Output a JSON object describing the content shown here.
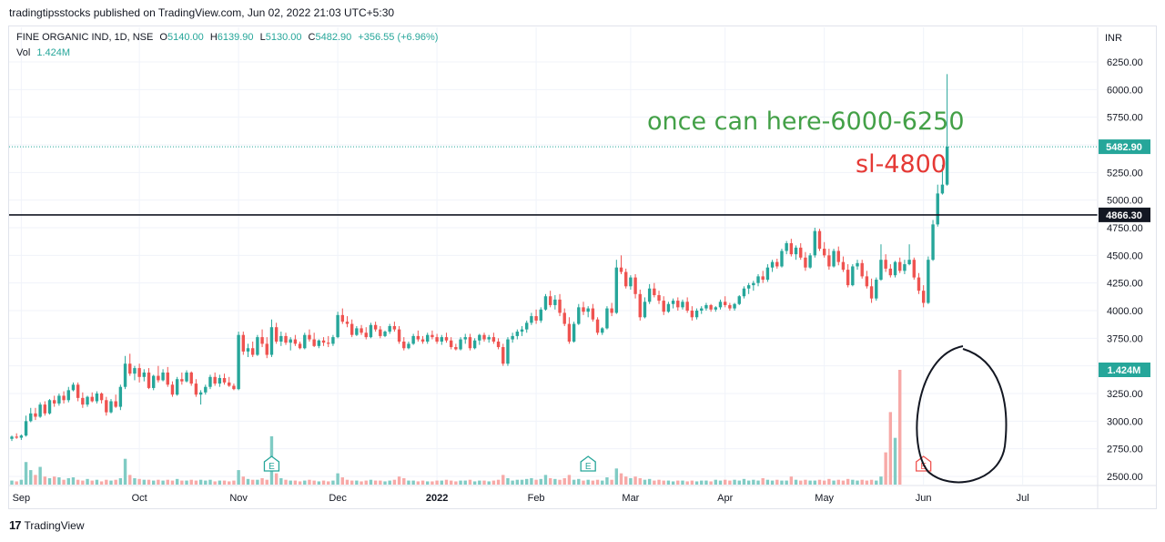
{
  "header": {
    "publisher_line": "tradingtipsstocks published on TradingView.com, Jun 02, 2022 21:03 UTC+5:30"
  },
  "legend": {
    "symbol": "FINE ORGANIC IND, 1D, NSE",
    "o_label": "O",
    "o_value": "5140.00",
    "h_label": "H",
    "h_value": "6139.90",
    "l_label": "L",
    "l_value": "5130.00",
    "c_label": "C",
    "c_value": "5482.90",
    "change": "+356.55 (+6.96%)",
    "vol_label": "Vol",
    "vol_value": "1.424M"
  },
  "annotations": {
    "target_text": "once can here-6000-6250",
    "sl_text": "sl-4800"
  },
  "footer": {
    "logo": "17",
    "brand": "TradingView"
  },
  "colors": {
    "up": "#26a69a",
    "down": "#ef5350",
    "up_vol": "#80cbc4",
    "down_vol": "#f7a9a7",
    "target_text": "#43a047",
    "sl_text": "#e53935",
    "level_line": "#131722"
  },
  "chart_data": {
    "type": "candlestick",
    "currency": "INR",
    "y_ticks": [
      "6250.00",
      "6000.00",
      "5750.00",
      "5500.00",
      "5250.00",
      "5000.00",
      "4750.00",
      "4500.00",
      "4250.00",
      "4000.00",
      "3750.00",
      "3500.00",
      "3250.00",
      "3000.00",
      "2750.00",
      "2500.00"
    ],
    "ylim": [
      2450,
      6450
    ],
    "x_labels": [
      "Sep",
      "Oct",
      "Nov",
      "Dec",
      "2022",
      "Feb",
      "Mar",
      "Apr",
      "May",
      "Jun",
      "Jul"
    ],
    "x_label_bar_index": [
      2,
      27,
      48,
      69,
      90,
      111,
      131,
      151,
      172,
      193,
      214
    ],
    "price_labels": {
      "last": "5482.90",
      "level": "4866.30",
      "volume": "1.424M"
    },
    "last_price": 5482.9,
    "horizontal_level": 4866.3,
    "events": [
      {
        "type": "E",
        "bar": 55
      },
      {
        "type": "E",
        "bar": 122
      },
      {
        "type": "E",
        "bar": 193,
        "highlight": true
      }
    ],
    "ohlc": [
      [
        2840,
        2870,
        2820,
        2860
      ],
      [
        2860,
        2890,
        2840,
        2850
      ],
      [
        2850,
        2880,
        2830,
        2870
      ],
      [
        2870,
        3050,
        2860,
        3000
      ],
      [
        3000,
        3120,
        2990,
        3070
      ],
      [
        3070,
        3120,
        3010,
        3040
      ],
      [
        3040,
        3170,
        3030,
        3150
      ],
      [
        3150,
        3180,
        3050,
        3070
      ],
      [
        3070,
        3200,
        3060,
        3190
      ],
      [
        3190,
        3230,
        3130,
        3160
      ],
      [
        3160,
        3250,
        3140,
        3230
      ],
      [
        3230,
        3270,
        3160,
        3190
      ],
      [
        3190,
        3310,
        3170,
        3280
      ],
      [
        3280,
        3350,
        3270,
        3330
      ],
      [
        3330,
        3350,
        3180,
        3210
      ],
      [
        3210,
        3260,
        3120,
        3150
      ],
      [
        3150,
        3230,
        3130,
        3220
      ],
      [
        3220,
        3260,
        3170,
        3180
      ],
      [
        3180,
        3270,
        3160,
        3250
      ],
      [
        3250,
        3260,
        3160,
        3190
      ],
      [
        3190,
        3220,
        3050,
        3080
      ],
      [
        3080,
        3200,
        3070,
        3180
      ],
      [
        3180,
        3240,
        3120,
        3130
      ],
      [
        3130,
        3330,
        3100,
        3310
      ],
      [
        3310,
        3590,
        3290,
        3520
      ],
      [
        3520,
        3610,
        3410,
        3430
      ],
      [
        3430,
        3500,
        3370,
        3480
      ],
      [
        3480,
        3520,
        3350,
        3400
      ],
      [
        3400,
        3470,
        3360,
        3440
      ],
      [
        3440,
        3480,
        3290,
        3300
      ],
      [
        3300,
        3420,
        3280,
        3410
      ],
      [
        3410,
        3500,
        3350,
        3370
      ],
      [
        3370,
        3470,
        3360,
        3440
      ],
      [
        3440,
        3490,
        3310,
        3330
      ],
      [
        3330,
        3360,
        3220,
        3240
      ],
      [
        3240,
        3400,
        3230,
        3380
      ],
      [
        3380,
        3440,
        3330,
        3360
      ],
      [
        3360,
        3460,
        3350,
        3440
      ],
      [
        3440,
        3450,
        3320,
        3340
      ],
      [
        3340,
        3380,
        3220,
        3240
      ],
      [
        3240,
        3280,
        3150,
        3260
      ],
      [
        3260,
        3330,
        3240,
        3310
      ],
      [
        3310,
        3420,
        3290,
        3400
      ],
      [
        3400,
        3440,
        3320,
        3340
      ],
      [
        3340,
        3420,
        3310,
        3390
      ],
      [
        3390,
        3430,
        3330,
        3350
      ],
      [
        3350,
        3400,
        3310,
        3320
      ],
      [
        3320,
        3340,
        3280,
        3290
      ],
      [
        3290,
        3810,
        3280,
        3780
      ],
      [
        3780,
        3810,
        3600,
        3630
      ],
      [
        3630,
        3700,
        3580,
        3660
      ],
      [
        3660,
        3720,
        3580,
        3600
      ],
      [
        3600,
        3780,
        3590,
        3760
      ],
      [
        3760,
        3830,
        3670,
        3700
      ],
      [
        3700,
        3760,
        3570,
        3600
      ],
      [
        3600,
        3920,
        3580,
        3850
      ],
      [
        3850,
        3890,
        3700,
        3720
      ],
      [
        3720,
        3810,
        3680,
        3770
      ],
      [
        3770,
        3800,
        3690,
        3710
      ],
      [
        3710,
        3760,
        3640,
        3740
      ],
      [
        3740,
        3780,
        3680,
        3700
      ],
      [
        3700,
        3720,
        3650,
        3660
      ],
      [
        3660,
        3800,
        3650,
        3780
      ],
      [
        3780,
        3830,
        3720,
        3740
      ],
      [
        3740,
        3800,
        3670,
        3680
      ],
      [
        3680,
        3740,
        3660,
        3730
      ],
      [
        3730,
        3760,
        3680,
        3710
      ],
      [
        3710,
        3770,
        3670,
        3700
      ],
      [
        3700,
        3780,
        3680,
        3760
      ],
      [
        3760,
        3990,
        3750,
        3960
      ],
      [
        3960,
        4020,
        3880,
        3900
      ],
      [
        3900,
        3950,
        3850,
        3880
      ],
      [
        3880,
        3920,
        3760,
        3780
      ],
      [
        3780,
        3860,
        3770,
        3840
      ],
      [
        3840,
        3870,
        3780,
        3800
      ],
      [
        3800,
        3850,
        3740,
        3760
      ],
      [
        3760,
        3890,
        3750,
        3870
      ],
      [
        3870,
        3900,
        3810,
        3830
      ],
      [
        3830,
        3860,
        3750,
        3770
      ],
      [
        3770,
        3820,
        3760,
        3810
      ],
      [
        3810,
        3880,
        3790,
        3860
      ],
      [
        3860,
        3900,
        3810,
        3830
      ],
      [
        3830,
        3860,
        3700,
        3720
      ],
      [
        3720,
        3760,
        3640,
        3660
      ],
      [
        3660,
        3720,
        3650,
        3700
      ],
      [
        3700,
        3790,
        3690,
        3770
      ],
      [
        3770,
        3820,
        3720,
        3740
      ],
      [
        3740,
        3770,
        3700,
        3720
      ],
      [
        3720,
        3800,
        3700,
        3780
      ],
      [
        3780,
        3820,
        3740,
        3760
      ],
      [
        3760,
        3790,
        3700,
        3720
      ],
      [
        3720,
        3780,
        3690,
        3760
      ],
      [
        3760,
        3800,
        3710,
        3730
      ],
      [
        3730,
        3760,
        3650,
        3670
      ],
      [
        3670,
        3700,
        3640,
        3650
      ],
      [
        3650,
        3760,
        3640,
        3740
      ],
      [
        3740,
        3790,
        3700,
        3760
      ],
      [
        3760,
        3790,
        3640,
        3660
      ],
      [
        3660,
        3750,
        3650,
        3730
      ],
      [
        3730,
        3790,
        3690,
        3780
      ],
      [
        3780,
        3800,
        3720,
        3740
      ],
      [
        3740,
        3780,
        3710,
        3760
      ],
      [
        3760,
        3800,
        3700,
        3720
      ],
      [
        3720,
        3750,
        3650,
        3670
      ],
      [
        3670,
        3700,
        3500,
        3520
      ],
      [
        3520,
        3760,
        3500,
        3740
      ],
      [
        3740,
        3800,
        3710,
        3770
      ],
      [
        3770,
        3830,
        3740,
        3810
      ],
      [
        3810,
        3860,
        3770,
        3830
      ],
      [
        3830,
        3910,
        3800,
        3890
      ],
      [
        3890,
        3980,
        3870,
        3950
      ],
      [
        3950,
        4010,
        3880,
        3910
      ],
      [
        3910,
        4030,
        3890,
        4010
      ],
      [
        4010,
        4150,
        4000,
        4130
      ],
      [
        4130,
        4180,
        4030,
        4050
      ],
      [
        4050,
        4140,
        4010,
        4100
      ],
      [
        4100,
        4150,
        3950,
        3980
      ],
      [
        3980,
        4020,
        3860,
        3880
      ],
      [
        3880,
        3940,
        3700,
        3720
      ],
      [
        3720,
        3900,
        3710,
        3880
      ],
      [
        3880,
        4060,
        3870,
        4030
      ],
      [
        4030,
        4080,
        3960,
        3990
      ],
      [
        3990,
        4040,
        3940,
        4020
      ],
      [
        4020,
        4060,
        3900,
        3920
      ],
      [
        3920,
        3940,
        3780,
        3800
      ],
      [
        3800,
        3850,
        3780,
        3840
      ],
      [
        3840,
        4040,
        3830,
        4020
      ],
      [
        4020,
        4070,
        3950,
        3980
      ],
      [
        3980,
        4460,
        3970,
        4390
      ],
      [
        4390,
        4500,
        4330,
        4350
      ],
      [
        4350,
        4380,
        4200,
        4220
      ],
      [
        4220,
        4320,
        4190,
        4300
      ],
      [
        4300,
        4330,
        4110,
        4150
      ],
      [
        4150,
        4190,
        3910,
        3940
      ],
      [
        3940,
        4120,
        3930,
        4080
      ],
      [
        4080,
        4240,
        4060,
        4200
      ],
      [
        4200,
        4250,
        4120,
        4140
      ],
      [
        4140,
        4180,
        4060,
        4090
      ],
      [
        4090,
        4130,
        3960,
        3990
      ],
      [
        3990,
        4080,
        3980,
        4060
      ],
      [
        4060,
        4110,
        4020,
        4090
      ],
      [
        4090,
        4120,
        4000,
        4030
      ],
      [
        4030,
        4100,
        4010,
        4080
      ],
      [
        4080,
        4120,
        3980,
        4000
      ],
      [
        4000,
        4040,
        3910,
        3940
      ],
      [
        3940,
        4020,
        3920,
        4000
      ],
      [
        4000,
        4040,
        3970,
        4020
      ],
      [
        4020,
        4070,
        4000,
        4050
      ],
      [
        4050,
        4060,
        3990,
        4010
      ],
      [
        4010,
        4040,
        3990,
        4030
      ],
      [
        4030,
        4100,
        4010,
        4080
      ],
      [
        4080,
        4130,
        4030,
        4050
      ],
      [
        4050,
        4070,
        4000,
        4020
      ],
      [
        4020,
        4070,
        4000,
        4060
      ],
      [
        4060,
        4140,
        4050,
        4130
      ],
      [
        4130,
        4220,
        4110,
        4200
      ],
      [
        4200,
        4250,
        4150,
        4230
      ],
      [
        4230,
        4270,
        4180,
        4250
      ],
      [
        4250,
        4330,
        4220,
        4310
      ],
      [
        4310,
        4360,
        4250,
        4280
      ],
      [
        4280,
        4420,
        4260,
        4390
      ],
      [
        4390,
        4460,
        4350,
        4440
      ],
      [
        4440,
        4470,
        4380,
        4400
      ],
      [
        4400,
        4560,
        4390,
        4540
      ],
      [
        4540,
        4630,
        4510,
        4610
      ],
      [
        4610,
        4650,
        4490,
        4510
      ],
      [
        4510,
        4590,
        4460,
        4570
      ],
      [
        4570,
        4610,
        4460,
        4480
      ],
      [
        4480,
        4530,
        4360,
        4390
      ],
      [
        4390,
        4520,
        4380,
        4500
      ],
      [
        4500,
        4750,
        4480,
        4720
      ],
      [
        4720,
        4740,
        4540,
        4560
      ],
      [
        4560,
        4620,
        4480,
        4500
      ],
      [
        4500,
        4560,
        4370,
        4400
      ],
      [
        4400,
        4560,
        4390,
        4540
      ],
      [
        4540,
        4580,
        4410,
        4440
      ],
      [
        4440,
        4490,
        4350,
        4370
      ],
      [
        4370,
        4420,
        4210,
        4230
      ],
      [
        4230,
        4420,
        4220,
        4400
      ],
      [
        4400,
        4460,
        4370,
        4430
      ],
      [
        4430,
        4460,
        4290,
        4310
      ],
      [
        4310,
        4360,
        4200,
        4220
      ],
      [
        4220,
        4290,
        4070,
        4110
      ],
      [
        4110,
        4300,
        4090,
        4280
      ],
      [
        4280,
        4600,
        4270,
        4460
      ],
      [
        4460,
        4510,
        4350,
        4380
      ],
      [
        4380,
        4420,
        4300,
        4320
      ],
      [
        4320,
        4450,
        4300,
        4440
      ],
      [
        4440,
        4480,
        4340,
        4360
      ],
      [
        4360,
        4460,
        4330,
        4420
      ],
      [
        4420,
        4600,
        4410,
        4460
      ],
      [
        4460,
        4480,
        4280,
        4300
      ],
      [
        4300,
        4340,
        4150,
        4180
      ],
      [
        4180,
        4230,
        4030,
        4070
      ],
      [
        4070,
        4490,
        4060,
        4460
      ],
      [
        4460,
        4820,
        4450,
        4780
      ],
      [
        4780,
        5140,
        4760,
        5060
      ],
      [
        5060,
        5320,
        5050,
        5140
      ],
      [
        5140,
        6140,
        5130,
        5483
      ]
    ],
    "volume": [
      0.05,
      0.04,
      0.06,
      0.28,
      0.18,
      0.12,
      0.22,
      0.1,
      0.08,
      0.1,
      0.09,
      0.06,
      0.08,
      0.09,
      0.06,
      0.05,
      0.07,
      0.05,
      0.06,
      0.04,
      0.06,
      0.05,
      0.06,
      0.08,
      0.32,
      0.12,
      0.08,
      0.07,
      0.06,
      0.06,
      0.05,
      0.06,
      0.05,
      0.06,
      0.05,
      0.07,
      0.05,
      0.05,
      0.06,
      0.05,
      0.06,
      0.05,
      0.06,
      0.04,
      0.05,
      0.05,
      0.04,
      0.05,
      0.18,
      0.1,
      0.07,
      0.06,
      0.06,
      0.08,
      0.06,
      0.6,
      0.14,
      0.08,
      0.06,
      0.05,
      0.05,
      0.04,
      0.05,
      0.06,
      0.05,
      0.04,
      0.05,
      0.04,
      0.05,
      0.14,
      0.09,
      0.06,
      0.05,
      0.05,
      0.04,
      0.05,
      0.06,
      0.05,
      0.05,
      0.04,
      0.05,
      0.06,
      0.1,
      0.08,
      0.05,
      0.05,
      0.04,
      0.05,
      0.04,
      0.04,
      0.05,
      0.05,
      0.06,
      0.05,
      0.04,
      0.05,
      0.05,
      0.06,
      0.04,
      0.05,
      0.05,
      0.04,
      0.05,
      0.06,
      0.12,
      0.08,
      0.05,
      0.06,
      0.06,
      0.07,
      0.08,
      0.06,
      0.07,
      0.12,
      0.08,
      0.07,
      0.06,
      0.08,
      0.12,
      0.06,
      0.07,
      0.05,
      0.06,
      0.05,
      0.06,
      0.05,
      0.09,
      0.06,
      0.2,
      0.14,
      0.1,
      0.08,
      0.1,
      0.08,
      0.06,
      0.07,
      0.05,
      0.06,
      0.05,
      0.05,
      0.04,
      0.05,
      0.05,
      0.04,
      0.05,
      0.04,
      0.05,
      0.05,
      0.04,
      0.06,
      0.05,
      0.06,
      0.05,
      0.06,
      0.05,
      0.07,
      0.05,
      0.06,
      0.05,
      0.08,
      0.06,
      0.05,
      0.06,
      0.05,
      0.05,
      0.1,
      0.06,
      0.05,
      0.06,
      0.05,
      0.05,
      0.06,
      0.05,
      0.07,
      0.05,
      0.06,
      0.05,
      0.07,
      0.06,
      0.05,
      0.06,
      0.05,
      0.06,
      0.05,
      0.1,
      0.4,
      0.9,
      0.58,
      1.424
    ]
  }
}
